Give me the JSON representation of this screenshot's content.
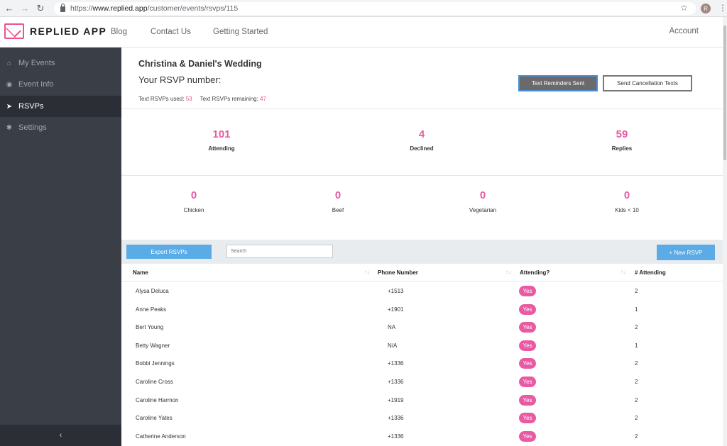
{
  "browser": {
    "url_prefix": "https://",
    "url_host": "www.replied.app",
    "url_path": "/customer/events/rsvps/115",
    "avatar_letter": "R"
  },
  "header": {
    "logo_text": "REPLIED APP",
    "nav": [
      "Blog",
      "Contact Us",
      "Getting Started"
    ],
    "account": "Account"
  },
  "sidebar": {
    "items": [
      {
        "label": "My Events",
        "icon": "home-icon"
      },
      {
        "label": "Event Info",
        "icon": "dashboard-icon"
      },
      {
        "label": "RSVPs",
        "icon": "paper-plane-icon",
        "active": true
      },
      {
        "label": "Settings",
        "icon": "gear-icon"
      }
    ],
    "collapse": "‹"
  },
  "event": {
    "title": "Christina & Daniel's Wedding",
    "rsvp_number_label": "Your RSVP number:",
    "used_label": "Text RSVPs used:",
    "used_value": "53",
    "remaining_label": "Text RSVPs remaining:",
    "remaining_value": "47",
    "reminders_button": "Text Reminders Sent",
    "cancel_button": "Send Cancellation Texts"
  },
  "stats": [
    {
      "value": "101",
      "label": "Attending"
    },
    {
      "value": "4",
      "label": "Declined"
    },
    {
      "value": "59",
      "label": "Replies"
    }
  ],
  "meals": [
    {
      "value": "0",
      "label": "Chicken"
    },
    {
      "value": "0",
      "label": "Beef"
    },
    {
      "value": "0",
      "label": "Vegetarian"
    },
    {
      "value": "0",
      "label": "Kids < 10"
    }
  ],
  "toolbar": {
    "export_label": "Export RSVPs",
    "search_placeholder": "Search",
    "new_label": "+ New RSVP"
  },
  "table": {
    "columns": [
      "Name",
      "Phone Number",
      "Attending?",
      "# Attending"
    ],
    "sort_glyph": "↑↓",
    "rows": [
      {
        "name": "Alysa Deluca",
        "phone": "+1513",
        "attending": "Yes",
        "count": "2"
      },
      {
        "name": "Anne Peaks",
        "phone": "+1901",
        "attending": "Yes",
        "count": "1"
      },
      {
        "name": "Bert Young",
        "phone": "NA",
        "attending": "Yes",
        "count": "2"
      },
      {
        "name": "Betty Wagner",
        "phone": "N/A",
        "attending": "Yes",
        "count": "1"
      },
      {
        "name": "Bobbi Jennings",
        "phone": "+1336",
        "attending": "Yes",
        "count": "2"
      },
      {
        "name": "Caroline Cross",
        "phone": "+1336",
        "attending": "Yes",
        "count": "2"
      },
      {
        "name": "Caroline Harmon",
        "phone": "+1919",
        "attending": "Yes",
        "count": "2"
      },
      {
        "name": "Caroline Yates",
        "phone": "+1336",
        "attending": "Yes",
        "count": "2"
      },
      {
        "name": "Catherine Anderson",
        "phone": "+1336",
        "attending": "Yes",
        "count": "2"
      }
    ]
  },
  "colors": {
    "accent_pink": "#e85aa1",
    "button_blue": "#5aabe6",
    "sidebar_bg": "#3a3f47"
  }
}
